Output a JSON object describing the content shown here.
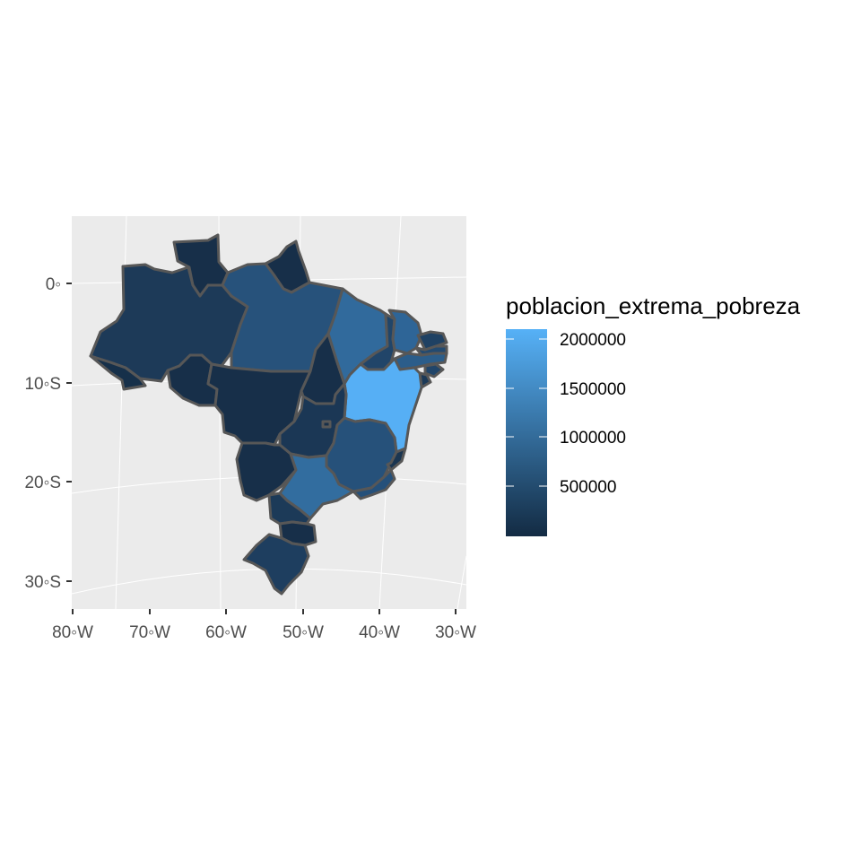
{
  "map": {
    "y_tick_labels": [
      "0◦",
      "10◦S",
      "20◦S",
      "30◦S"
    ],
    "x_tick_labels": [
      "80◦W",
      "70◦W",
      "60◦W",
      "50◦W",
      "40◦W",
      "30◦W"
    ],
    "panel_background": "#ebebeb",
    "graticule_color": "#ffffff",
    "border_color": "#575757"
  },
  "legend": {
    "title": "poblacion_extrema_pobreza",
    "labels": [
      "2000000",
      "1500000",
      "1000000",
      "500000"
    ],
    "color_low": "#132b43",
    "color_high": "#56b1f7"
  },
  "states": [
    {
      "name": "Roraima",
      "fill": "#172f49"
    },
    {
      "name": "Amapa",
      "fill": "#172f49"
    },
    {
      "name": "Amazonas",
      "fill": "#1d3a58"
    },
    {
      "name": "Para",
      "fill": "#27527b"
    },
    {
      "name": "Acre",
      "fill": "#16304a"
    },
    {
      "name": "Rondonia",
      "fill": "#172f49"
    },
    {
      "name": "Mato Grosso",
      "fill": "#172f49"
    },
    {
      "name": "Tocantins",
      "fill": "#172f49"
    },
    {
      "name": "Maranhao",
      "fill": "#316a9c"
    },
    {
      "name": "Piaui",
      "fill": "#214569"
    },
    {
      "name": "Ceara",
      "fill": "#2e6597"
    },
    {
      "name": "Rio Grande do Norte",
      "fill": "#1f4163"
    },
    {
      "name": "Paraiba",
      "fill": "#234a70"
    },
    {
      "name": "Pernambuco",
      "fill": "#2b5d8a"
    },
    {
      "name": "Alagoas",
      "fill": "#214569"
    },
    {
      "name": "Sergipe",
      "fill": "#1c3a58"
    },
    {
      "name": "Bahia",
      "fill": "#56aff5"
    },
    {
      "name": "Goias",
      "fill": "#1b3755"
    },
    {
      "name": "Distrito Federal",
      "fill": "#172f49"
    },
    {
      "name": "Minas Gerais",
      "fill": "#26517a"
    },
    {
      "name": "Espirito Santo",
      "fill": "#1a3551"
    },
    {
      "name": "Mato Grosso do Sul",
      "fill": "#172f49"
    },
    {
      "name": "Sao Paulo",
      "fill": "#326d9f"
    },
    {
      "name": "Rio de Janeiro",
      "fill": "#25507a"
    },
    {
      "name": "Parana",
      "fill": "#1c3a58"
    },
    {
      "name": "Santa Catarina",
      "fill": "#172f49"
    },
    {
      "name": "Rio Grande do Sul",
      "fill": "#1e3e5f"
    }
  ]
}
